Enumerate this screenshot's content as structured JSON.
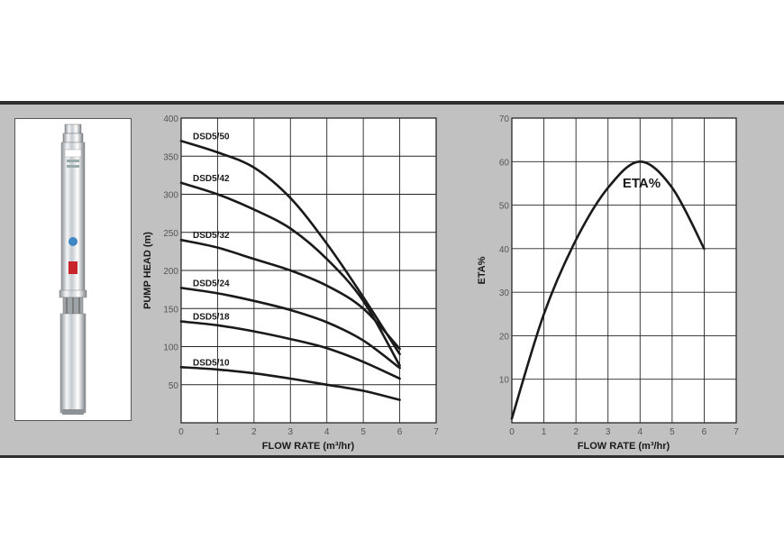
{
  "pump_image": {
    "icon": "submersible-pump-photo"
  },
  "chart_data": [
    {
      "type": "line",
      "xlabel": "FLOW RATE (m³/hr)",
      "ylabel": "PUMP HEAD (m)",
      "xlim": [
        0,
        7
      ],
      "ylim": [
        0,
        400
      ],
      "x_ticks": [
        "0",
        "1",
        "2",
        "3",
        "4",
        "5",
        "6",
        "7"
      ],
      "y_ticks": [
        "50",
        "100",
        "150",
        "200",
        "250",
        "300",
        "350",
        "400"
      ],
      "grid": true,
      "series": [
        {
          "name": "DSD5/50",
          "x": [
            0,
            1,
            2,
            3,
            4,
            5,
            6
          ],
          "values": [
            370,
            355,
            335,
            295,
            235,
            165,
            90
          ]
        },
        {
          "name": "DSD5/42",
          "x": [
            0,
            1,
            2,
            3,
            4,
            5,
            6
          ],
          "values": [
            315,
            300,
            280,
            255,
            215,
            160,
            75
          ]
        },
        {
          "name": "DSD5/32",
          "x": [
            0,
            1,
            2,
            3,
            4,
            5,
            6
          ],
          "values": [
            240,
            230,
            215,
            200,
            180,
            150,
            97
          ]
        },
        {
          "name": "DSD5/24",
          "x": [
            0,
            1,
            2,
            3,
            4,
            5,
            6
          ],
          "values": [
            177,
            170,
            160,
            148,
            132,
            108,
            72
          ]
        },
        {
          "name": "DSD5/18",
          "x": [
            0,
            1,
            2,
            3,
            4,
            5,
            6
          ],
          "values": [
            133,
            128,
            120,
            110,
            98,
            80,
            58
          ]
        },
        {
          "name": "DSD5/10",
          "x": [
            0,
            1,
            2,
            3,
            4,
            5,
            6
          ],
          "values": [
            73,
            70,
            65,
            58,
            50,
            42,
            30
          ]
        }
      ]
    },
    {
      "type": "line",
      "xlabel": "FLOW RATE (m³/hr)",
      "ylabel": "ETA%",
      "xlim": [
        0,
        7
      ],
      "ylim": [
        0,
        70
      ],
      "x_ticks": [
        "0",
        "1",
        "2",
        "3",
        "4",
        "5",
        "6",
        "7"
      ],
      "y_ticks": [
        "10",
        "20",
        "30",
        "40",
        "50",
        "60",
        "70"
      ],
      "grid": true,
      "annotation": "ETA%",
      "series": [
        {
          "x": [
            0,
            1,
            2,
            3,
            4,
            5,
            6
          ],
          "values": [
            1,
            25,
            42,
            54,
            60,
            54,
            40
          ]
        }
      ]
    }
  ]
}
